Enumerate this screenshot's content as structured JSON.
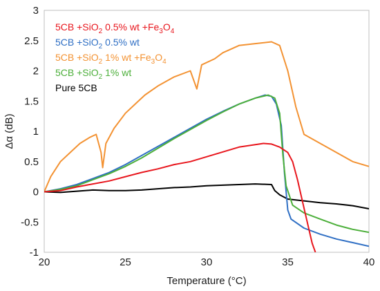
{
  "chart_data": {
    "type": "line",
    "title": "",
    "xlabel": "Temperature (°C)",
    "ylabel": "Δα (dB)",
    "xlim": [
      20,
      40
    ],
    "ylim": [
      -1,
      3
    ],
    "x_ticks": [
      "20",
      "25",
      "30",
      "35",
      "40"
    ],
    "y_ticks": [
      "-1",
      "-0.5",
      "0",
      "0.5",
      "1",
      "1.5",
      "2",
      "2.5",
      "3"
    ],
    "grid": false,
    "legend_position": "top-left",
    "series": [
      {
        "name": "5CB +SiO2 0.5% wt +Fe3O4",
        "color": "#e8161d",
        "points": [
          [
            20,
            0
          ],
          [
            21,
            0.02
          ],
          [
            22,
            0.08
          ],
          [
            23,
            0.13
          ],
          [
            24,
            0.18
          ],
          [
            25,
            0.25
          ],
          [
            26,
            0.32
          ],
          [
            27,
            0.38
          ],
          [
            28,
            0.45
          ],
          [
            29,
            0.5
          ],
          [
            30,
            0.58
          ],
          [
            31,
            0.66
          ],
          [
            32,
            0.74
          ],
          [
            33,
            0.78
          ],
          [
            33.5,
            0.8
          ],
          [
            34,
            0.79
          ],
          [
            34.5,
            0.74
          ],
          [
            35,
            0.65
          ],
          [
            35.3,
            0.5
          ],
          [
            35.6,
            0.2
          ],
          [
            35.9,
            -0.15
          ],
          [
            36.2,
            -0.5
          ],
          [
            36.5,
            -0.85
          ],
          [
            36.7,
            -1.0
          ]
        ]
      },
      {
        "name": "5CB +SiO2 0.5% wt",
        "color": "#2f6fc4",
        "points": [
          [
            20,
            0
          ],
          [
            21,
            0.05
          ],
          [
            22,
            0.12
          ],
          [
            23,
            0.22
          ],
          [
            24,
            0.32
          ],
          [
            25,
            0.45
          ],
          [
            26,
            0.6
          ],
          [
            27,
            0.75
          ],
          [
            28,
            0.9
          ],
          [
            29,
            1.05
          ],
          [
            30,
            1.2
          ],
          [
            31,
            1.33
          ],
          [
            32,
            1.45
          ],
          [
            33,
            1.55
          ],
          [
            33.6,
            1.6
          ],
          [
            34,
            1.58
          ],
          [
            34.3,
            1.45
          ],
          [
            34.6,
            1.1
          ],
          [
            34.8,
            0.3
          ],
          [
            35.0,
            -0.3
          ],
          [
            35.2,
            -0.45
          ],
          [
            36,
            -0.6
          ],
          [
            37,
            -0.7
          ],
          [
            38,
            -0.78
          ],
          [
            39,
            -0.84
          ],
          [
            40,
            -0.9
          ]
        ]
      },
      {
        "name": "5CB +SiO2 1% wt +Fe3O4",
        "color": "#f39232",
        "points": [
          [
            20,
            0
          ],
          [
            20.4,
            0.25
          ],
          [
            21,
            0.5
          ],
          [
            21.6,
            0.65
          ],
          [
            22.2,
            0.8
          ],
          [
            22.8,
            0.9
          ],
          [
            23.2,
            0.95
          ],
          [
            23.5,
            0.65
          ],
          [
            23.6,
            0.4
          ],
          [
            23.8,
            0.8
          ],
          [
            24.3,
            1.05
          ],
          [
            25,
            1.3
          ],
          [
            25.6,
            1.45
          ],
          [
            26.2,
            1.6
          ],
          [
            27,
            1.75
          ],
          [
            28,
            1.9
          ],
          [
            29,
            2.0
          ],
          [
            29.4,
            1.7
          ],
          [
            29.7,
            2.1
          ],
          [
            30.5,
            2.2
          ],
          [
            31,
            2.3
          ],
          [
            32,
            2.42
          ],
          [
            33,
            2.45
          ],
          [
            34,
            2.48
          ],
          [
            34.5,
            2.42
          ],
          [
            35,
            2.0
          ],
          [
            35.5,
            1.4
          ],
          [
            36,
            0.95
          ],
          [
            37,
            0.8
          ],
          [
            38,
            0.65
          ],
          [
            39,
            0.5
          ],
          [
            40,
            0.42
          ]
        ]
      },
      {
        "name": "5CB +SiO2 1% wt",
        "color": "#4caf3a",
        "points": [
          [
            20,
            0
          ],
          [
            21,
            0.04
          ],
          [
            22,
            0.1
          ],
          [
            23,
            0.2
          ],
          [
            24,
            0.3
          ],
          [
            25,
            0.42
          ],
          [
            26,
            0.56
          ],
          [
            27,
            0.72
          ],
          [
            28,
            0.88
          ],
          [
            29,
            1.03
          ],
          [
            30,
            1.18
          ],
          [
            31,
            1.32
          ],
          [
            32,
            1.45
          ],
          [
            33,
            1.55
          ],
          [
            33.8,
            1.6
          ],
          [
            34.2,
            1.55
          ],
          [
            34.5,
            1.3
          ],
          [
            34.7,
            0.6
          ],
          [
            34.9,
            0.1
          ],
          [
            35.3,
            -0.22
          ],
          [
            36,
            -0.35
          ],
          [
            37,
            -0.45
          ],
          [
            38,
            -0.55
          ],
          [
            39,
            -0.62
          ],
          [
            40,
            -0.67
          ]
        ]
      },
      {
        "name": "Pure 5CB",
        "color": "#000000",
        "points": [
          [
            20,
            0
          ],
          [
            21,
            -0.01
          ],
          [
            22,
            0.01
          ],
          [
            23,
            0.03
          ],
          [
            24,
            0.02
          ],
          [
            25,
            0.02
          ],
          [
            26,
            0.03
          ],
          [
            27,
            0.05
          ],
          [
            28,
            0.07
          ],
          [
            29,
            0.08
          ],
          [
            30,
            0.1
          ],
          [
            31,
            0.11
          ],
          [
            32,
            0.12
          ],
          [
            33,
            0.13
          ],
          [
            34,
            0.12
          ],
          [
            34.2,
            0.02
          ],
          [
            34.5,
            -0.05
          ],
          [
            35,
            -0.12
          ],
          [
            36,
            -0.15
          ],
          [
            37,
            -0.18
          ],
          [
            38,
            -0.2
          ],
          [
            39,
            -0.23
          ],
          [
            40,
            -0.28
          ]
        ]
      }
    ],
    "legend": [
      {
        "parts": [
          [
            "5CB +SiO",
            "n"
          ],
          [
            "2",
            "sub"
          ],
          [
            " 0.5% wt +Fe",
            "n"
          ],
          [
            "3",
            "sub"
          ],
          [
            "O",
            "n"
          ],
          [
            "4",
            "sub"
          ]
        ],
        "color": "#e8161d"
      },
      {
        "parts": [
          [
            "5CB +SiO",
            "n"
          ],
          [
            "2",
            "sub"
          ],
          [
            " 0.5% wt",
            "n"
          ]
        ],
        "color": "#2f6fc4"
      },
      {
        "parts": [
          [
            "5CB +SiO",
            "n"
          ],
          [
            "2",
            "sub"
          ],
          [
            " 1% wt +Fe",
            "n"
          ],
          [
            "3",
            "sub"
          ],
          [
            "O",
            "n"
          ],
          [
            "4",
            "sub"
          ]
        ],
        "color": "#f39232"
      },
      {
        "parts": [
          [
            "5CB +SiO",
            "n"
          ],
          [
            "2",
            "sub"
          ],
          [
            " 1% wt",
            "n"
          ]
        ],
        "color": "#4caf3a"
      },
      {
        "parts": [
          [
            "Pure 5CB",
            "n"
          ]
        ],
        "color": "#000000"
      }
    ]
  }
}
